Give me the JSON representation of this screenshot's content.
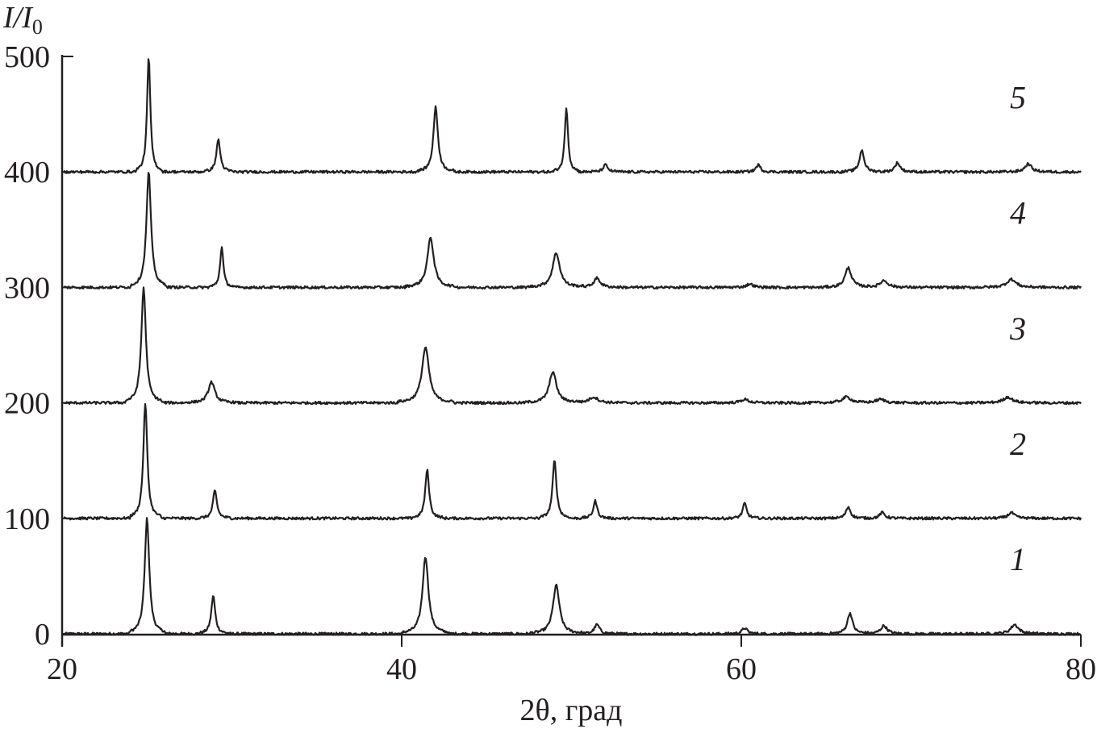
{
  "chart_data": {
    "type": "line",
    "title": "",
    "xlabel": "2θ, град",
    "ylabel": "I/I0",
    "ylabel_parts": {
      "main": "I/I",
      "sub": "0"
    },
    "xlim": [
      20,
      80
    ],
    "ylim": [
      0,
      500
    ],
    "xticks": [
      "20",
      "40",
      "60",
      "80"
    ],
    "yticks": [
      "0",
      "100",
      "200",
      "300",
      "400",
      "500"
    ],
    "grid": false,
    "line_color": "#231f20",
    "series": [
      {
        "name": "1",
        "offset": 0,
        "peaks": [
          {
            "x": 25.0,
            "h": 100,
            "fwhm": 0.35
          },
          {
            "x": 28.9,
            "h": 33,
            "fwhm": 0.3
          },
          {
            "x": 41.4,
            "h": 67,
            "fwhm": 0.45
          },
          {
            "x": 49.1,
            "h": 42,
            "fwhm": 0.5
          },
          {
            "x": 51.5,
            "h": 8,
            "fwhm": 0.4
          },
          {
            "x": 60.2,
            "h": 5,
            "fwhm": 0.4
          },
          {
            "x": 66.4,
            "h": 18,
            "fwhm": 0.4
          },
          {
            "x": 68.4,
            "h": 7,
            "fwhm": 0.5
          },
          {
            "x": 76.1,
            "h": 8,
            "fwhm": 0.6
          }
        ]
      },
      {
        "name": "2",
        "offset": 100,
        "peaks": [
          {
            "x": 24.9,
            "h": 100,
            "fwhm": 0.3
          },
          {
            "x": 29.0,
            "h": 24,
            "fwhm": 0.3
          },
          {
            "x": 41.5,
            "h": 42,
            "fwhm": 0.3
          },
          {
            "x": 49.0,
            "h": 50,
            "fwhm": 0.3
          },
          {
            "x": 51.4,
            "h": 15,
            "fwhm": 0.3
          },
          {
            "x": 60.2,
            "h": 13,
            "fwhm": 0.3
          },
          {
            "x": 66.3,
            "h": 10,
            "fwhm": 0.35
          },
          {
            "x": 68.3,
            "h": 5,
            "fwhm": 0.4
          },
          {
            "x": 75.9,
            "h": 5,
            "fwhm": 0.5
          }
        ]
      },
      {
        "name": "3",
        "offset": 200,
        "peaks": [
          {
            "x": 24.8,
            "h": 100,
            "fwhm": 0.35
          },
          {
            "x": 28.8,
            "h": 18,
            "fwhm": 0.5
          },
          {
            "x": 41.4,
            "h": 48,
            "fwhm": 0.55
          },
          {
            "x": 48.9,
            "h": 27,
            "fwhm": 0.55
          },
          {
            "x": 51.3,
            "h": 5,
            "fwhm": 0.7
          },
          {
            "x": 60.2,
            "h": 3,
            "fwhm": 0.6
          },
          {
            "x": 66.2,
            "h": 5,
            "fwhm": 0.7
          },
          {
            "x": 68.2,
            "h": 3,
            "fwhm": 0.7
          },
          {
            "x": 75.7,
            "h": 5,
            "fwhm": 0.7
          }
        ]
      },
      {
        "name": "4",
        "offset": 300,
        "peaks": [
          {
            "x": 25.1,
            "h": 100,
            "fwhm": 0.35
          },
          {
            "x": 29.4,
            "h": 35,
            "fwhm": 0.25
          },
          {
            "x": 41.7,
            "h": 43,
            "fwhm": 0.5
          },
          {
            "x": 49.1,
            "h": 30,
            "fwhm": 0.55
          },
          {
            "x": 51.5,
            "h": 8,
            "fwhm": 0.5
          },
          {
            "x": 60.5,
            "h": 3,
            "fwhm": 0.5
          },
          {
            "x": 66.3,
            "h": 17,
            "fwhm": 0.5
          },
          {
            "x": 68.4,
            "h": 6,
            "fwhm": 0.6
          },
          {
            "x": 75.9,
            "h": 7,
            "fwhm": 0.7
          }
        ]
      },
      {
        "name": "5",
        "offset": 400,
        "peaks": [
          {
            "x": 25.1,
            "h": 100,
            "fwhm": 0.25
          },
          {
            "x": 29.2,
            "h": 28,
            "fwhm": 0.3
          },
          {
            "x": 42.0,
            "h": 56,
            "fwhm": 0.35
          },
          {
            "x": 49.7,
            "h": 56,
            "fwhm": 0.25
          },
          {
            "x": 52.0,
            "h": 6,
            "fwhm": 0.35
          },
          {
            "x": 61.0,
            "h": 6,
            "fwhm": 0.35
          },
          {
            "x": 67.1,
            "h": 19,
            "fwhm": 0.35
          },
          {
            "x": 69.2,
            "h": 8,
            "fwhm": 0.4
          },
          {
            "x": 76.9,
            "h": 7,
            "fwhm": 0.5
          }
        ]
      }
    ]
  }
}
